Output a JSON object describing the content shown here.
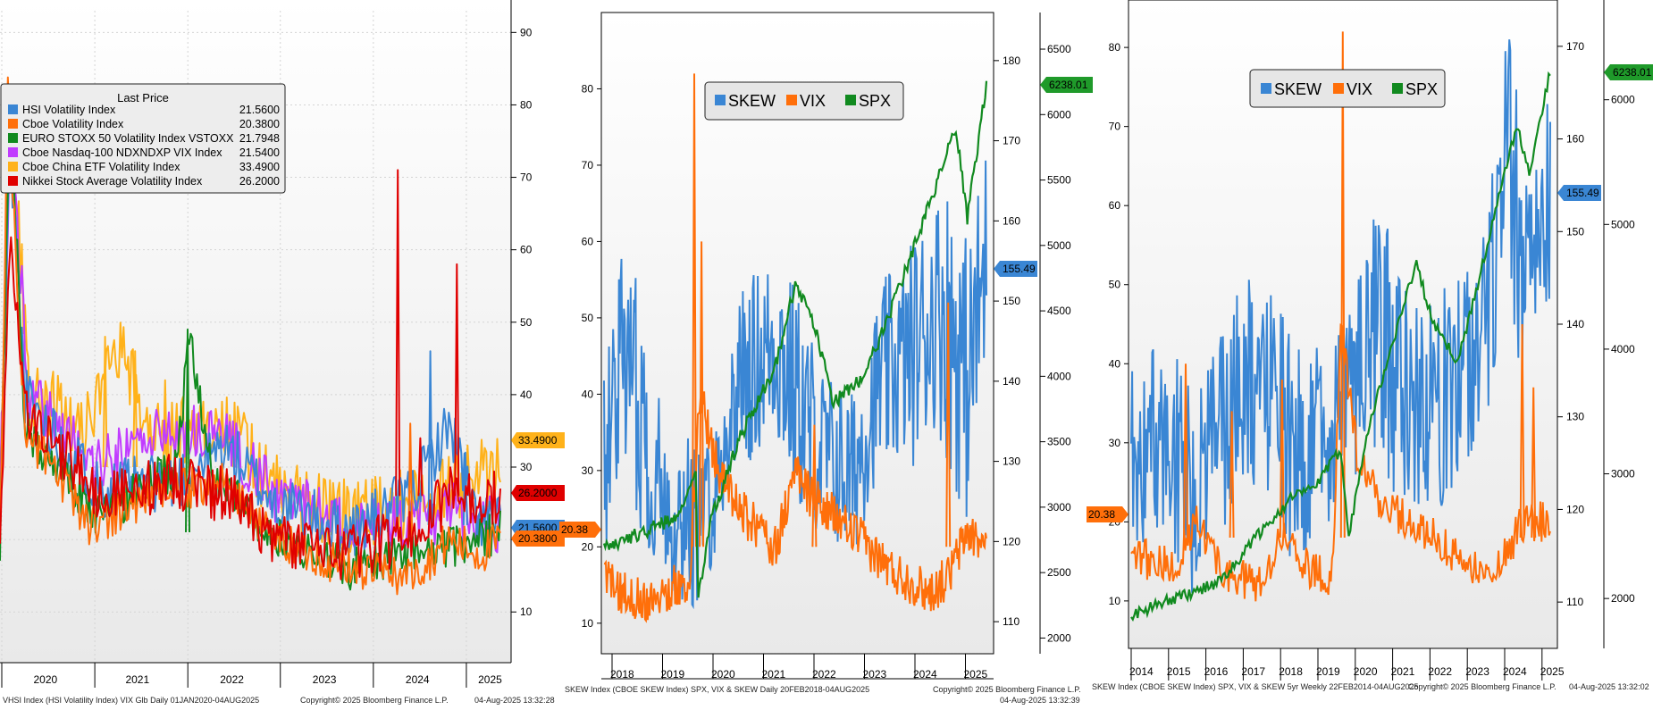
{
  "colors": {
    "blue": "#3a86d4",
    "orange": "#ff6f0a",
    "green": "#118a1f",
    "purple": "#c13cff",
    "gold": "#ffb21a",
    "red": "#e00000",
    "tag_green": "#1f9a2a",
    "tag_blue": "#3a86d4",
    "tag_orange": "#ff6f0a",
    "tag_gold": "#ffb21a",
    "tag_red": "#e00000"
  },
  "chart_data": [
    {
      "type": "line",
      "legend_title": "Last Price",
      "legend_placement": "top-left",
      "x_ticks": [
        "2020",
        "2021",
        "2022",
        "2023",
        "2024",
        "2025"
      ],
      "y_ticks": [
        10,
        20,
        30,
        40,
        50,
        60,
        70,
        80,
        90
      ],
      "ylim": [
        3,
        93
      ],
      "series": [
        {
          "name": "HSI Volatility Index",
          "last": "21.5600",
          "color": "#3a86d4"
        },
        {
          "name": "Cboe Volatility Index",
          "last": "20.3800",
          "color": "#ff6f0a"
        },
        {
          "name": "EURO STOXX 50 Volatility Index VSTOXX",
          "last": "21.7948",
          "color": "#118a1f"
        },
        {
          "name": "Cboe Nasdaq-100 NDXNDXP VIX Index",
          "last": "21.5400",
          "color": "#c13cff"
        },
        {
          "name": "Cboe China ETF Volatility Index",
          "last": "33.4900",
          "color": "#ffb21a"
        },
        {
          "name": "Nikkei Stock Average Volatility Index",
          "last": "26.2000",
          "color": "#e00000"
        }
      ],
      "value_tags": [
        "33.4900",
        "26.2000",
        "21.5600",
        "20.3800"
      ],
      "footer_left": "VHSI Index (HSI Volatility Index) VIX Glb    Daily 01JAN2020-04AUG2025",
      "footer_mid": "Copyright© 2025 Bloomberg Finance L.P.",
      "footer_right": "04-Aug-2025 13:32:28"
    },
    {
      "type": "line",
      "legend_placement": "top-center",
      "x_ticks": [
        "2018",
        "2019",
        "2020",
        "2021",
        "2022",
        "2023",
        "2024",
        "2025"
      ],
      "left_axis": {
        "ticks": [
          10,
          20,
          30,
          40,
          50,
          60,
          70,
          80
        ],
        "range": [
          6,
          90
        ]
      },
      "mid_axis": {
        "ticks": [
          110,
          120,
          130,
          140,
          150,
          160,
          170,
          180
        ],
        "range": [
          106,
          186
        ]
      },
      "right_axis": {
        "ticks": [
          2000,
          2500,
          3000,
          3500,
          4000,
          4500,
          5000,
          5500,
          6000,
          6500
        ],
        "range": [
          1880,
          6780
        ]
      },
      "series": [
        {
          "name": "SKEW",
          "color": "#3a86d4",
          "last": "155.49"
        },
        {
          "name": "VIX",
          "color": "#ff6f0a",
          "last": "20.38"
        },
        {
          "name": "SPX",
          "color": "#118a1f",
          "last": "6238.01"
        }
      ],
      "footer_left": "SKEW Index (CBOE SKEW Index) SPX, VIX & SKEW  Daily 20FEB2018-04AUG2025",
      "footer_right_top": "Copyright© 2025 Bloomberg Finance L.P.",
      "footer_right_bottom": "04-Aug-2025 13:32:39"
    },
    {
      "type": "line",
      "legend_placement": "top-center",
      "x_ticks": [
        "2014",
        "2015",
        "2016",
        "2017",
        "2018",
        "2019",
        "2020",
        "2021",
        "2022",
        "2023",
        "2024",
        "2025"
      ],
      "left_axis": {
        "ticks": [
          10,
          20,
          30,
          40,
          50,
          60,
          70,
          80
        ],
        "range": [
          4,
          86
        ]
      },
      "mid_axis": {
        "ticks": [
          110,
          120,
          130,
          140,
          150,
          160,
          170
        ],
        "range": [
          105,
          175
        ]
      },
      "right_axis": {
        "ticks": [
          2000,
          3000,
          4000,
          5000,
          6000
        ],
        "range": [
          1600,
          6800
        ]
      },
      "series": [
        {
          "name": "SKEW",
          "color": "#3a86d4",
          "last": "155.49"
        },
        {
          "name": "VIX",
          "color": "#ff6f0a",
          "last": "20.38"
        },
        {
          "name": "SPX",
          "color": "#118a1f",
          "last": "6238.01"
        }
      ],
      "footer_left": "SKEW Index (CBOE SKEW Index) SPX, VIX & SKEW 5yr  Weekly 22FEB2014-04AUG2025",
      "footer_mid": "Copyright© 2025 Bloomberg Finance L.P.",
      "footer_right": "04-Aug-2025 13:32:02"
    }
  ]
}
